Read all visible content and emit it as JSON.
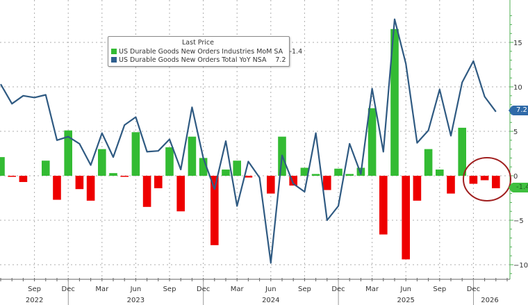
{
  "legend": {
    "title": "Last Price",
    "items": [
      {
        "label": "US Durable Goods New Orders Industries MoM SA",
        "value": "-1.4",
        "color": "#33bb33"
      },
      {
        "label": "US Durable Goods New Orders Total YoY NSA",
        "value": "7.2",
        "color": "#2f5f8f"
      }
    ]
  },
  "badges": {
    "line_last": "7.2",
    "bar_last": "-1.4"
  },
  "colors": {
    "bar_positive": "#33bb33",
    "bar_negative": "#ee0000",
    "line": "#2f5a82",
    "axis": "#4caf50",
    "grid": "#9a9a9a",
    "highlight_ellipse": "#a01f1f"
  },
  "chart_data": {
    "type": "bar+line",
    "title": "",
    "xlabel": "",
    "ylabel": "",
    "ylim": [
      -12,
      18
    ],
    "y_ticks": [
      -10,
      -5,
      0,
      5,
      10,
      15
    ],
    "x_tick_labels": [
      {
        "month": "Sep",
        "year": "2022"
      },
      {
        "month": "Dec",
        "year": ""
      },
      {
        "month": "Mar",
        "year": ""
      },
      {
        "month": "Jun",
        "year": "2023"
      },
      {
        "month": "Sep",
        "year": ""
      },
      {
        "month": "Dec",
        "year": ""
      },
      {
        "month": "Mar",
        "year": ""
      },
      {
        "month": "Jun",
        "year": "2024"
      },
      {
        "month": "Sep",
        "year": ""
      },
      {
        "month": "Dec",
        "year": ""
      },
      {
        "month": "Mar",
        "year": ""
      },
      {
        "month": "Jun",
        "year": "2025"
      },
      {
        "month": "Sep",
        "year": ""
      },
      {
        "month": "Dec",
        "year": ""
      },
      {
        "month": "",
        "year": "2026"
      }
    ],
    "grid": true,
    "legend_position": "upper-left",
    "categories": [
      "Jun 2022",
      "Jul 2022",
      "Aug 2022",
      "Sep 2022",
      "Oct 2022",
      "Nov 2022",
      "Dec 2022",
      "Jan 2023",
      "Feb 2023",
      "Mar 2023",
      "Apr 2023",
      "May 2023",
      "Jun 2023",
      "Jul 2023",
      "Aug 2023",
      "Sep 2023",
      "Oct 2023",
      "Nov 2023",
      "Dec 2023",
      "Jan 2024",
      "Feb 2024",
      "Mar 2024",
      "Apr 2024",
      "May 2024",
      "Jun 2024",
      "Jul 2024",
      "Aug 2024",
      "Sep 2024",
      "Oct 2024",
      "Nov 2024",
      "Dec 2024",
      "Jan 2025",
      "Feb 2025",
      "Mar 2025",
      "Apr 2025",
      "May 2025",
      "Jun 2025",
      "Jul 2025",
      "Aug 2025",
      "Sep 2025",
      "Oct 2025",
      "Nov 2025",
      "Dec 2025",
      "Jan 2026",
      "Feb 2026"
    ],
    "series": [
      {
        "name": "US Durable Goods New Orders Industries MoM SA",
        "type": "bar",
        "values": [
          2.1,
          -0.1,
          -0.7,
          0.0,
          1.7,
          -2.7,
          5.1,
          -1.5,
          -2.8,
          3.0,
          0.3,
          -0.1,
          4.9,
          -3.5,
          -1.4,
          3.2,
          -4.0,
          4.4,
          2.0,
          -7.8,
          0.7,
          1.7,
          -0.2,
          0.0,
          -2.0,
          4.4,
          -1.1,
          0.9,
          0.2,
          -1.6,
          0.8,
          0.2,
          0.9,
          7.6,
          -6.6,
          16.5,
          -9.4,
          -2.8,
          3.0,
          0.7,
          -2.0,
          5.4,
          -0.9,
          -0.5,
          -1.4
        ]
      },
      {
        "name": "US Durable Goods New Orders Total YoY NSA",
        "type": "line",
        "values": [
          10.3,
          8.1,
          9.0,
          8.8,
          9.1,
          4.0,
          4.4,
          3.6,
          1.2,
          4.8,
          2.1,
          5.7,
          6.6,
          2.7,
          2.8,
          4.1,
          0.7,
          7.7,
          2.0,
          -1.5,
          3.9,
          -3.4,
          1.6,
          -0.2,
          -9.8,
          2.3,
          -0.9,
          -1.8,
          4.8,
          -5.0,
          -3.4,
          3.6,
          0.2,
          9.8,
          2.7,
          17.6,
          12.6,
          3.7,
          5.1,
          9.7,
          4.5,
          10.5,
          12.9,
          8.9,
          7.2
        ]
      }
    ],
    "annotations": [
      {
        "type": "ellipse",
        "target": "Dec 2025 - Feb 2026 bars",
        "color": "#a01f1f"
      }
    ]
  }
}
